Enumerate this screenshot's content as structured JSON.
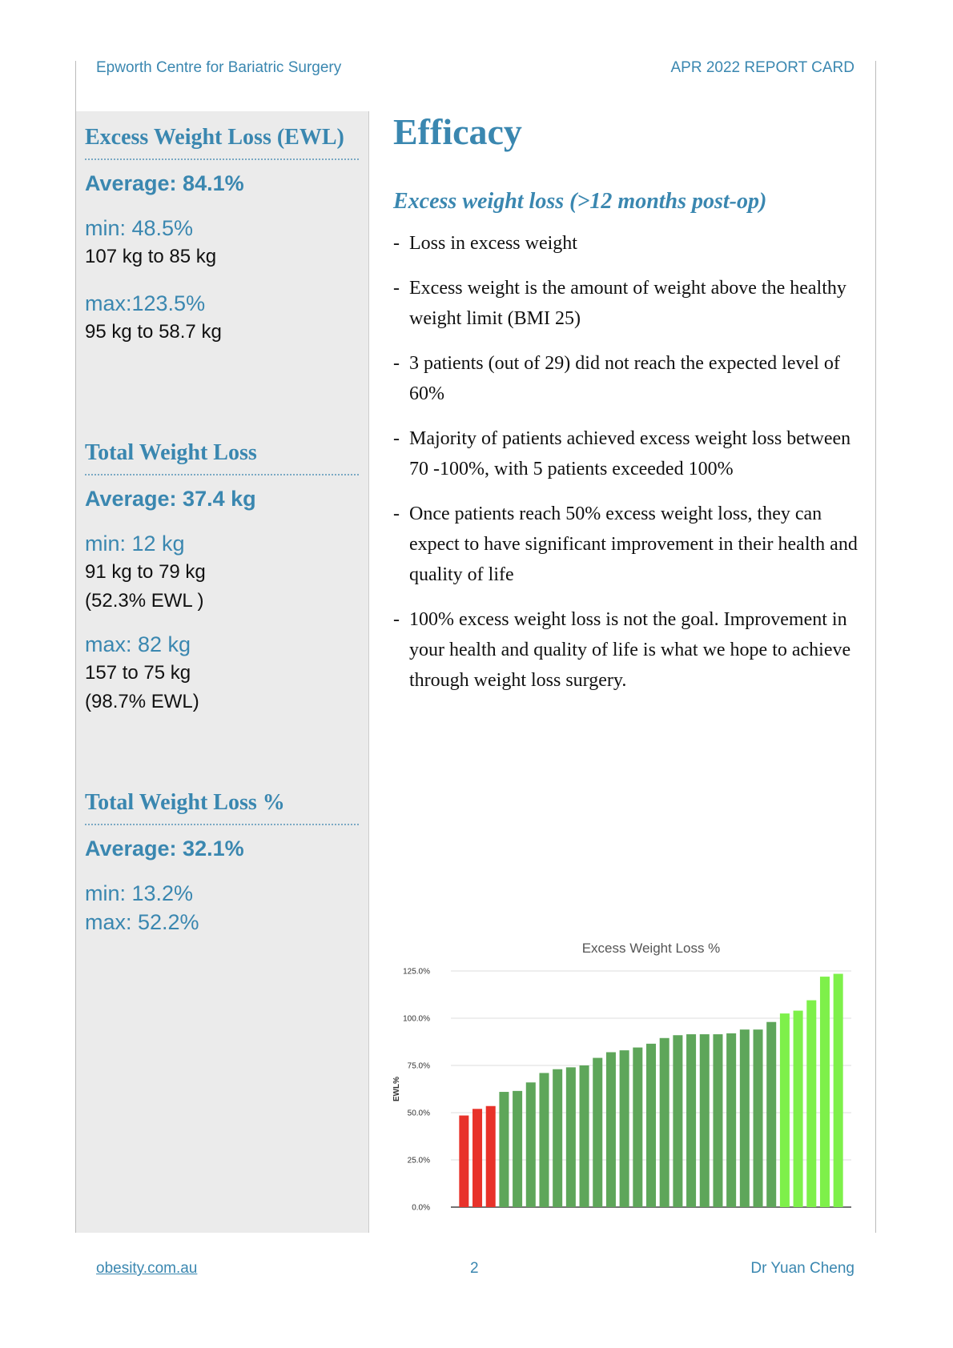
{
  "header": {
    "left": "Epworth Centre for Bariatric Surgery",
    "right": "APR 2022 REPORT CARD"
  },
  "sidebar": {
    "sections": [
      {
        "title": "Excess Weight Loss (EWL)",
        "average": "Average: 84.1%",
        "groups": [
          {
            "label": "min: 48.5%",
            "details": [
              "107 kg to 85 kg"
            ]
          },
          {
            "label": "max:123.5%",
            "details": [
              "95 kg to 58.7 kg"
            ]
          }
        ]
      },
      {
        "title": "Total Weight Loss",
        "average": "Average: 37.4 kg",
        "groups": [
          {
            "label": "min: 12 kg",
            "details": [
              "91 kg  to 79 kg",
              "(52.3% EWL )"
            ]
          },
          {
            "label": "max: 82 kg",
            "details": [
              "157 to 75 kg",
              "(98.7% EWL)"
            ]
          }
        ]
      },
      {
        "title": "Total Weight Loss %",
        "average": "Average: 32.1%",
        "groups": [
          {
            "label": "min: 13.2%",
            "details": []
          },
          {
            "label": "max: 52.2%",
            "details": []
          }
        ]
      }
    ]
  },
  "main": {
    "title": "Efficacy",
    "subtitle": "Excess weight loss (>12 months post-op)",
    "bullets": [
      "Loss in excess weight",
      "Excess weight is the amount of weight above the healthy weight limit (BMI 25)",
      "3 patients (out of 29) did not reach the expected level of 60%",
      "Majority of patients achieved excess weight loss between 70 -100%, with 5 patients exceeded 100%",
      "Once patients reach 50% excess weight loss, they can expect to have significant improvement in their health and quality of life",
      "100% excess weight loss is not the goal. Improvement in your health and quality of life is what we hope to achieve through weight loss surgery."
    ]
  },
  "chart_data": {
    "type": "bar",
    "title": "Excess Weight Loss %",
    "y_label": "EWL%",
    "values": [
      48.5,
      52,
      53.5,
      61,
      61.5,
      66,
      71,
      73,
      74,
      75,
      79,
      82,
      83,
      84.5,
      86.5,
      89.5,
      91,
      91.5,
      91.5,
      91.5,
      92,
      94,
      94,
      98,
      102.5,
      104,
      109.5,
      122,
      123.5
    ],
    "colors": [
      "#e8322a",
      "#e8322a",
      "#e8322a",
      "#5ea65a",
      "#5ea65a",
      "#5ea65a",
      "#5ea65a",
      "#5ea65a",
      "#5ea65a",
      "#5ea65a",
      "#5ea65a",
      "#5ea65a",
      "#5ea65a",
      "#5ea65a",
      "#5ea65a",
      "#5ea65a",
      "#5ea65a",
      "#5ea65a",
      "#5ea65a",
      "#5ea65a",
      "#5ea65a",
      "#5ea65a",
      "#5ea65a",
      "#5ea65a",
      "#7ef04a",
      "#7ef04a",
      "#7ef04a",
      "#7ef04a",
      "#7ef04a"
    ],
    "ylim": [
      0,
      125
    ],
    "yticks": [
      {
        "value": 0,
        "label": "0.0%"
      },
      {
        "value": 25,
        "label": "25.0%"
      },
      {
        "value": 50,
        "label": "50.0%"
      },
      {
        "value": 75,
        "label": "75.0%"
      },
      {
        "value": 100,
        "label": "100.0%"
      },
      {
        "value": 125,
        "label": "125.0%"
      }
    ],
    "grid": true
  },
  "footer": {
    "left": "obesity.com.au",
    "center": "2",
    "right": "Dr Yuan Cheng"
  }
}
